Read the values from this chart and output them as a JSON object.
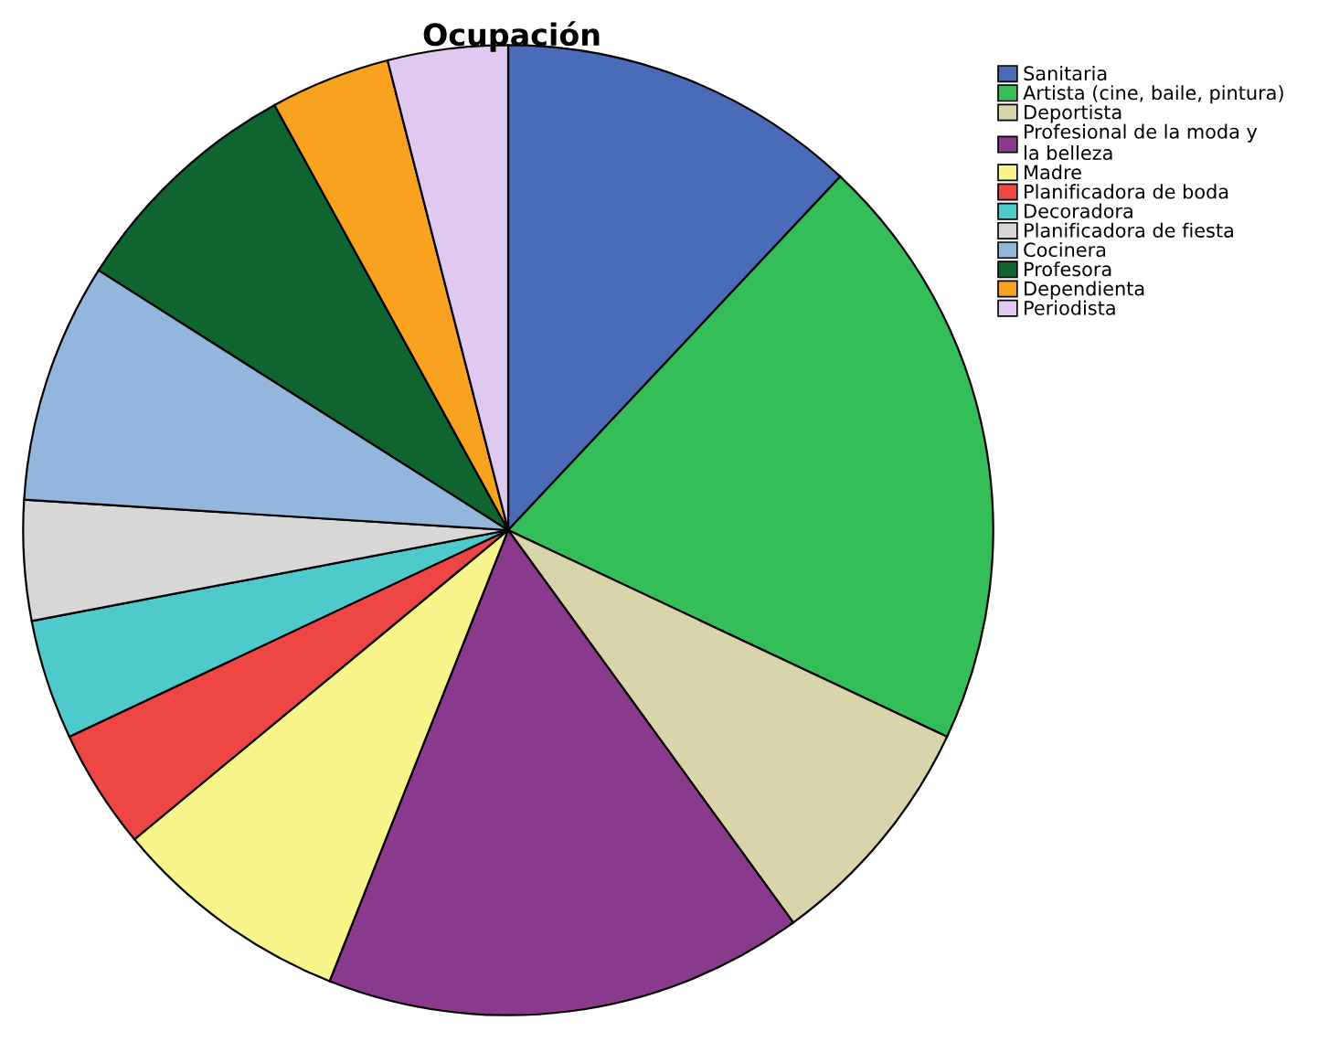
{
  "chart_data": {
    "type": "pie",
    "title": "Ocupación",
    "categories": [
      "Sanitaria",
      "Artista (cine, baile, pintura)",
      "Deportista",
      "Profesional de la moda y\nla belleza",
      "Madre",
      "Planificadora de boda",
      "Decoradora",
      "Planificadora de fiesta",
      "Cocinera",
      "Profesora",
      "Dependienta",
      "Periodista"
    ],
    "values": [
      12,
      20,
      8,
      16,
      8,
      4,
      4,
      4,
      8,
      8,
      4,
      4
    ],
    "colors": [
      "#4a6bb8",
      "#35bd59",
      "#d9d4aa",
      "#8a3a8c",
      "#f8f58a",
      "#ee4545",
      "#4ec9cc",
      "#d7d7d7",
      "#93b6dc",
      "#0e6530",
      "#f8a21f",
      "#dfc9f0"
    ],
    "legend": "top right"
  }
}
